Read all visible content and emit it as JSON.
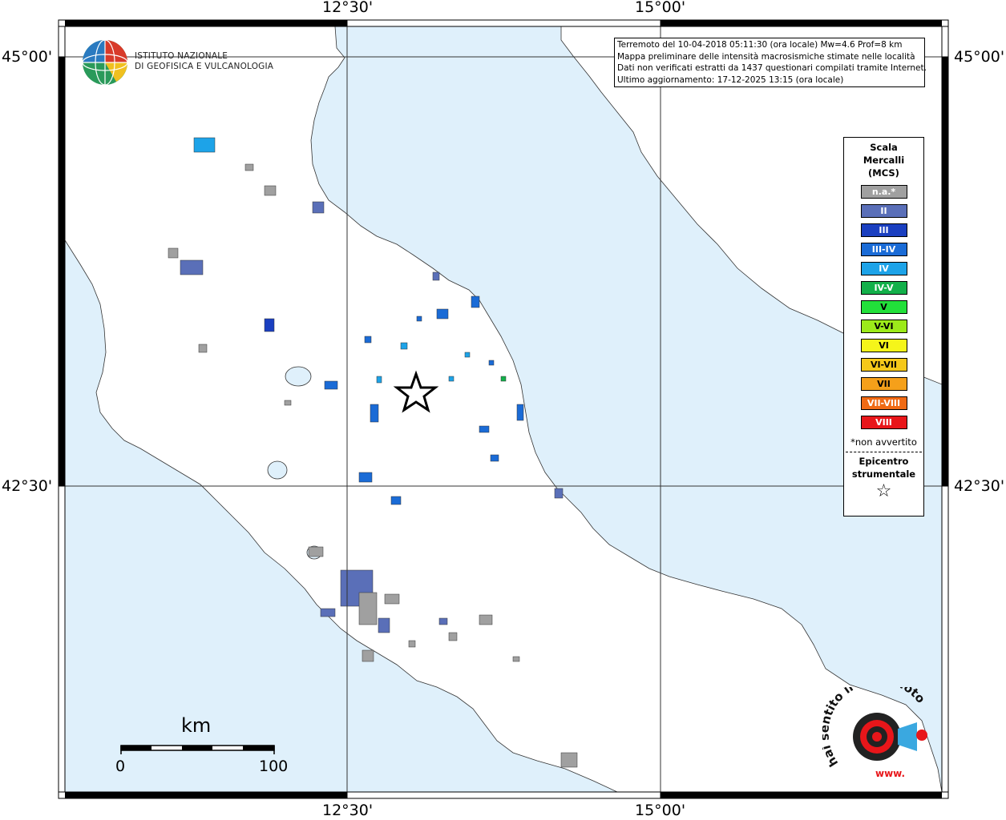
{
  "header": {
    "info_lines": [
      "Terremoto del 10-04-2018 05:11:30 (ora locale) Mw=4.6 Prof=8 km",
      "Mappa preliminare delle intensità macrosismiche stimate nelle località",
      "Dati non verificati estratti da 1437 questionari compilati tramite Internet.",
      "Ultimo aggiornamento: 17-12-2025 13:15 (ora locale)"
    ]
  },
  "ingv": {
    "line1": "ISTITUTO NAZIONALE",
    "line2": "DI GEOFISICA E VULCANOLOGIA"
  },
  "coordinates": {
    "lon_left": "12°30'",
    "lon_right": "15°00'",
    "lat_top": "45°00'",
    "lat_bottom": "42°30'"
  },
  "legend": {
    "title_lines": [
      "Scala",
      "Mercalli",
      "(MCS)"
    ],
    "items": [
      {
        "label": "n.a.*",
        "color": "#a0a0a0",
        "text_color": "#ffffff"
      },
      {
        "label": "II",
        "color": "#5a6fb8",
        "text_color": "#ffffff"
      },
      {
        "label": "III",
        "color": "#1a3fc0",
        "text_color": "#ffffff"
      },
      {
        "label": "III-IV",
        "color": "#1a6bd6",
        "text_color": "#ffffff"
      },
      {
        "label": "IV",
        "color": "#1da3e8",
        "text_color": "#ffffff"
      },
      {
        "label": "IV-V",
        "color": "#13b04a",
        "text_color": "#ffffff"
      },
      {
        "label": "V",
        "color": "#22e03a",
        "text_color": "#000000"
      },
      {
        "label": "V-VI",
        "color": "#9cea1a",
        "text_color": "#000000"
      },
      {
        "label": "VI",
        "color": "#f5f51a",
        "text_color": "#000000"
      },
      {
        "label": "VI-VII",
        "color": "#f5c81a",
        "text_color": "#000000"
      },
      {
        "label": "VII",
        "color": "#f5a01a",
        "text_color": "#000000"
      },
      {
        "label": "VII-VIII",
        "color": "#f06a14",
        "text_color": "#ffffff"
      },
      {
        "label": "VIII",
        "color": "#e8161a",
        "text_color": "#ffffff"
      }
    ],
    "note": "*non avvertito",
    "epicenter_lines": [
      "Epicentro",
      "strumentale"
    ],
    "epicenter_symbol": "☆"
  },
  "scale_bar": {
    "unit": "km",
    "min": "0",
    "max": "100"
  },
  "hst_logo": {
    "text": "hai sentito il terremoto.it",
    "url_text": "www."
  },
  "colors": {
    "sea": "#dff0fb",
    "land": "#ffffff"
  }
}
